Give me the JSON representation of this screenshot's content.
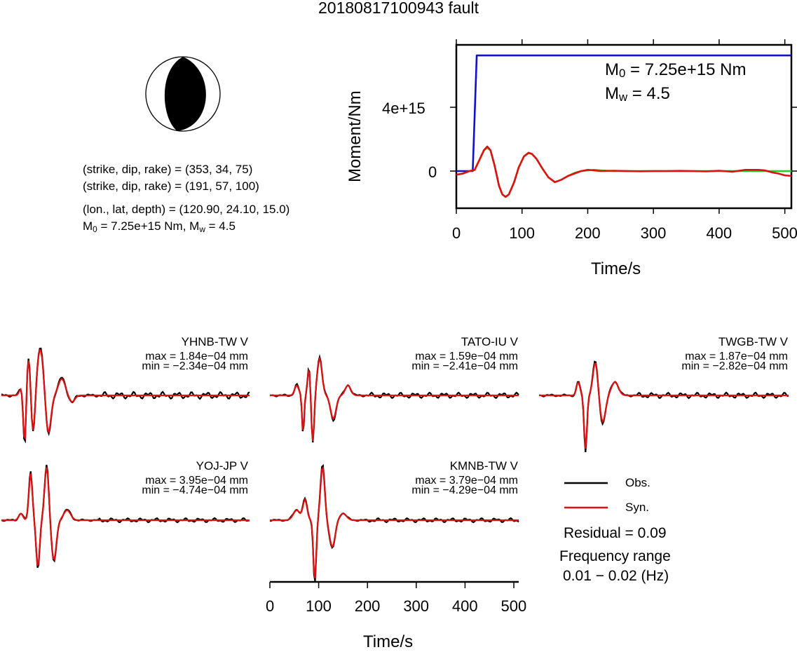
{
  "title": "20180817100943 fault",
  "focal_info": {
    "plane1": "(strike, dip, rake) = (353, 34, 75)",
    "plane2": "(strike, dip, rake) = (191, 57, 100)",
    "location": "(lon., lat, depth) = (120.90, 24.10, 15.0)",
    "moment_prefix": "M",
    "moment_sub": "0",
    "moment_rest": " = 7.25e+15 Nm, M",
    "mw_sub": "w",
    "mw_rest": " = 4.5"
  },
  "colors": {
    "observed": "#000000",
    "synthetic": "#e01010",
    "moment": "#1010d0",
    "moment_rate": "#22cc22"
  },
  "chart_data": [
    {
      "type": "line",
      "panel": "moment-function",
      "ylabel": "Moment/Nm",
      "xlabel": "Time/s",
      "xlim": [
        0,
        510
      ],
      "xticks": [
        "0",
        "100",
        "200",
        "300",
        "400",
        "500"
      ],
      "yticks": [
        "0",
        "4e+15"
      ],
      "annotation": {
        "m0_prefix": "M",
        "m0_sub": "0",
        "m0_rest": " = 7.25e+15 Nm",
        "mw_prefix": "M",
        "mw_sub": "w",
        "mw_rest": " = 4.5"
      },
      "series": [
        {
          "role": "cumulative-moment",
          "x": [
            0,
            25,
            31,
            510
          ],
          "y": [
            0,
            0,
            7250000000000000.0,
            7250000000000000.0
          ]
        },
        {
          "role": "moment-rate",
          "x": [
            0,
            10,
            20,
            28,
            35,
            42,
            47,
            52,
            58,
            65,
            70,
            75,
            80,
            88,
            95,
            103,
            110,
            115,
            122,
            130,
            140,
            150,
            160,
            170,
            180,
            190,
            200,
            210,
            220,
            240,
            260,
            280,
            300,
            320,
            340,
            360,
            380,
            400,
            420,
            440,
            460,
            470,
            480,
            490,
            500,
            510
          ],
          "y": [
            -0.3,
            -0.2,
            0,
            0.1,
            0.9,
            1.7,
            1.9,
            1.7,
            0.5,
            -1.2,
            -1.9,
            -2.1,
            -1.9,
            -0.9,
            0.3,
            1.2,
            1.45,
            1.4,
            1.0,
            0.3,
            -0.5,
            -0.9,
            -0.7,
            -0.4,
            -0.15,
            0,
            0.05,
            0.1,
            0.05,
            0,
            0,
            0,
            0,
            0,
            0,
            0,
            0,
            0,
            0,
            0,
            0,
            0,
            0,
            0,
            0,
            0
          ]
        },
        {
          "role": "moment-rate-fit",
          "x": [
            0,
            10,
            20,
            28,
            35,
            42,
            47,
            52,
            58,
            65,
            70,
            75,
            80,
            88,
            95,
            103,
            110,
            115,
            122,
            130,
            140,
            150,
            160,
            170,
            180,
            190,
            200,
            210,
            220,
            240,
            260,
            280,
            300,
            320,
            340,
            360,
            380,
            400,
            420,
            440,
            460,
            470,
            480,
            490,
            500,
            510
          ],
          "y": [
            -0.3,
            -0.2,
            0,
            0.1,
            0.9,
            1.7,
            2.0,
            1.7,
            0.5,
            -1.2,
            -1.9,
            -2.1,
            -1.9,
            -0.9,
            0.3,
            1.2,
            1.5,
            1.4,
            1.0,
            0.3,
            -0.5,
            -0.9,
            -0.7,
            -0.4,
            -0.2,
            0,
            0.1,
            0.05,
            0,
            0.03,
            0,
            -0.02,
            0,
            0,
            0.02,
            0,
            -0.03,
            0.03,
            -0.05,
            0.1,
            0.1,
            0.05,
            -0.1,
            -0.2,
            -0.35,
            -0.4
          ]
        }
      ]
    },
    {
      "type": "line",
      "panel": "waveforms",
      "xlabel": "Time/s",
      "xlim": [
        0,
        510
      ],
      "xticks": [
        "0",
        "100",
        "200",
        "300",
        "400",
        "500"
      ],
      "stations": [
        {
          "name": "YHNB-TW V",
          "max": "max = 1.84e−04 mm",
          "min": "min = −2.34e−04 mm"
        },
        {
          "name": "TATO-IU V",
          "max": "max = 1.59e−04 mm",
          "min": "min = −2.41e−04 mm"
        },
        {
          "name": "TWGB-TW V",
          "max": "max = 1.87e−04 mm",
          "min": "min = −2.82e−04 mm"
        },
        {
          "name": "YOJ-JP V",
          "max": "max = 3.95e−04 mm",
          "min": "min = −4.74e−04 mm"
        },
        {
          "name": "KMNB-TW V",
          "max": "max = 3.79e−04 mm",
          "min": "min = −4.29e−04 mm"
        }
      ]
    }
  ],
  "legend": {
    "obs": "Obs.",
    "syn": "Syn.",
    "residual": "Residual = 0.09",
    "freq_title": "Frequency range",
    "freq_value": "0.01 − 0.02 (Hz)"
  }
}
